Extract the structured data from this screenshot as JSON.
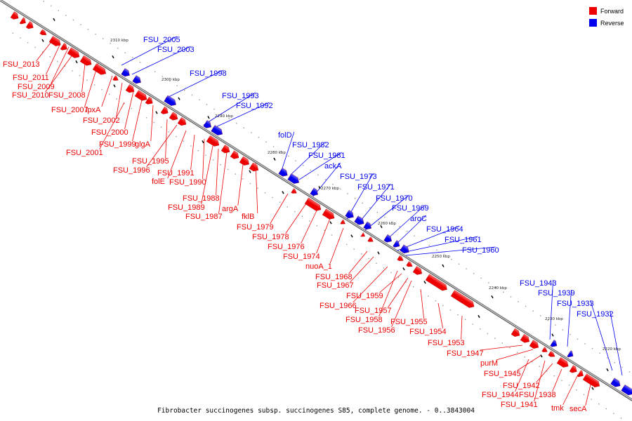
{
  "legend": [
    {
      "label": "Forward",
      "color": "#ee0000"
    },
    {
      "label": "Reverse",
      "color": "#0000ee"
    }
  ],
  "caption": "Fibrobacter succinogenes subsp. succinogenes S85, complete genome. - 0..3843004",
  "colors": {
    "forward": "#ee0000",
    "forward_light": "#ff6a6a",
    "reverse": "#0000ee",
    "reverse_light": "#6a6aff",
    "backbone": "#777777",
    "tick": "#000000"
  },
  "kbp_labels": [
    "2310 kbp",
    "2300 kbp",
    "2290 kbp",
    "2280 kbp",
    "2270 kbp",
    "2260 kbp",
    "2250 kbp",
    "2240 kbp",
    "2230 kbp",
    "2220 kbp"
  ],
  "genes_forward": [
    "FSU_2013",
    "FSU_2011",
    "FSU_2009",
    "FSU_2010",
    "FSU_2008",
    "FSU_2007",
    "lpxA",
    "FSU_2002",
    "FSU_2000",
    "FSU_1999",
    "glgA",
    "FSU_2001",
    "FSU_1995",
    "FSU_1996",
    "FSU_1991",
    "folE",
    "FSU_1990",
    "FSU_1988",
    "FSU_1989",
    "argA",
    "FSU_1987",
    "fklB",
    "FSU_1979",
    "FSU_1978",
    "FSU_1976",
    "FSU_1974",
    "nuoA_1",
    "FSU_1968",
    "FSU_1967",
    "FSU_1959",
    "FSU_1966",
    "FSU_1957",
    "FSU_1958",
    "FSU_1955",
    "FSU_1956",
    "FSU_1954",
    "FSU_1953",
    "FSU_1947",
    "purM",
    "FSU_1945",
    "FSU_1942",
    "FSU_1944",
    "FSU_1938",
    "FSU_1941",
    "tmk",
    "secA"
  ],
  "genes_reverse": [
    "FSU_2005",
    "FSU_2003",
    "FSU_1998",
    "FSU_1993",
    "FSU_1992",
    "folD",
    "FSU_1982",
    "FSU_1981",
    "ackA",
    "FSU_1973",
    "FSU_1971",
    "FSU_1970",
    "FSU_1969",
    "aroC",
    "FSU_1964",
    "FSU_1961",
    "FSU_1960",
    "FSU_1943",
    "FSU_1939",
    "FSU_1933",
    "FSU_1932"
  ]
}
